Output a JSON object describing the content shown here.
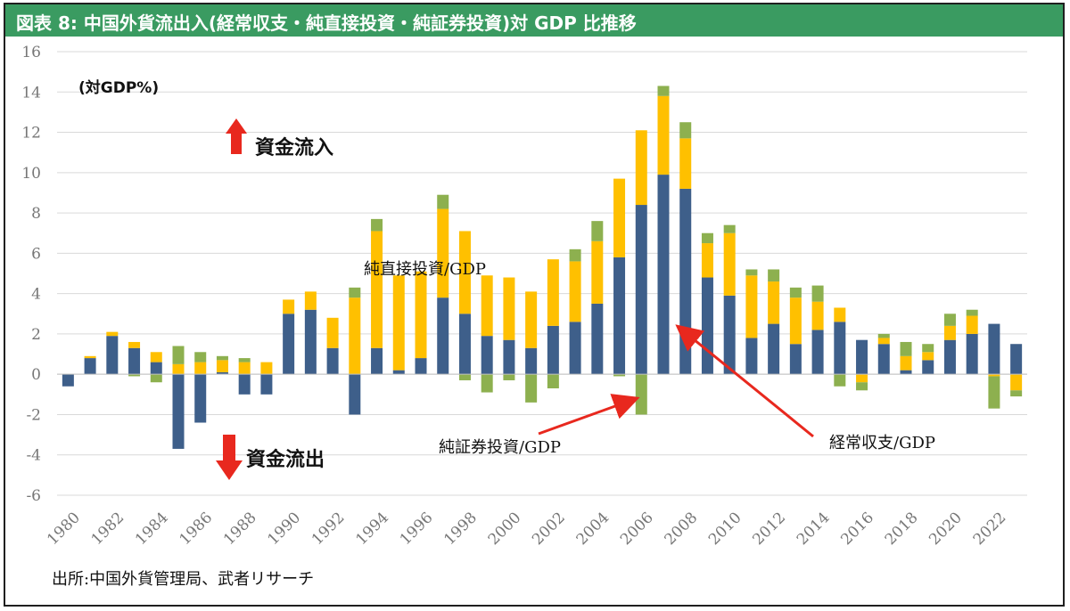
{
  "title": "図表 8: 中国外貨流出入(経常収支・純直接投資・純証券投資)対 GDP 比推移",
  "source": "出所:中国外貨管理局、武者リサーチ",
  "colors": {
    "current_account": "#3e5f8a",
    "fdi": "#ffc000",
    "portfolio": "#8db04f",
    "arrow": "#e8281e",
    "title_bg": "#3a9b61"
  },
  "chart_data": {
    "type": "bar",
    "stacked": true,
    "ylabel": "(対GDP%)",
    "ylim": [
      -6,
      16
    ],
    "yticks": [
      16,
      14,
      12,
      10,
      8,
      6,
      4,
      2,
      0,
      -2,
      -4,
      -6
    ],
    "grid": true,
    "x_tick_labels": [
      "1980",
      "1982",
      "1984",
      "1986",
      "1988",
      "1990",
      "1992",
      "1994",
      "1996",
      "1998",
      "2000",
      "2002",
      "2004",
      "2006",
      "2008",
      "2010",
      "2012",
      "2014",
      "2016",
      "2018",
      "2020",
      "2022"
    ],
    "categories": [
      "1980",
      "1981",
      "1982",
      "1983",
      "1984",
      "1985",
      "1986",
      "1987",
      "1988",
      "1989",
      "1990",
      "1991",
      "1992",
      "1993",
      "1994",
      "1995",
      "1996",
      "1997",
      "1998",
      "1999",
      "2000",
      "2001",
      "2002",
      "2003",
      "2004",
      "2005",
      "2006",
      "2007",
      "2008",
      "2009",
      "2010",
      "2011",
      "2012",
      "2013",
      "2014",
      "2015",
      "2016",
      "2017",
      "2018",
      "2019",
      "2020",
      "2021",
      "2022",
      "2023"
    ],
    "series": [
      {
        "key": "current_account",
        "values": [
          -0.6,
          0.8,
          1.9,
          1.3,
          0.6,
          -3.7,
          -2.4,
          0.1,
          -1.0,
          -1.0,
          3.0,
          3.2,
          1.3,
          -2.0,
          1.3,
          0.2,
          0.8,
          3.8,
          3.0,
          1.9,
          1.7,
          1.3,
          2.4,
          2.6,
          3.5,
          5.8,
          8.4,
          9.9,
          9.2,
          4.8,
          3.9,
          1.8,
          2.5,
          1.5,
          2.2,
          2.6,
          1.7,
          1.5,
          0.2,
          0.7,
          1.7,
          2.0,
          2.5,
          1.5
        ]
      },
      {
        "key": "fdi",
        "values": [
          0.0,
          0.1,
          0.2,
          0.3,
          0.5,
          0.5,
          0.6,
          0.6,
          0.6,
          0.6,
          0.7,
          0.9,
          1.5,
          3.8,
          5.8,
          4.7,
          4.3,
          4.4,
          4.1,
          3.0,
          3.1,
          2.8,
          3.3,
          3.0,
          3.1,
          3.9,
          3.7,
          3.9,
          2.5,
          1.7,
          3.1,
          3.1,
          2.1,
          2.3,
          1.4,
          0.7,
          -0.4,
          0.3,
          0.7,
          0.4,
          0.7,
          0.9,
          -0.1,
          -0.8
        ]
      },
      {
        "key": "portfolio",
        "values": [
          0.0,
          0.0,
          0.0,
          -0.1,
          -0.4,
          0.9,
          0.5,
          0.2,
          0.2,
          0.0,
          0.0,
          0.0,
          0.0,
          0.5,
          0.6,
          0.0,
          0.0,
          0.7,
          -0.3,
          -0.9,
          -0.3,
          -1.4,
          -0.7,
          0.6,
          1.0,
          -0.1,
          -2.0,
          0.5,
          0.8,
          0.5,
          0.4,
          0.3,
          0.6,
          0.5,
          0.8,
          -0.6,
          -0.4,
          0.2,
          0.7,
          0.4,
          0.6,
          0.3,
          -1.6,
          -0.3
        ]
      }
    ],
    "annotations": {
      "inflow": "資金流入",
      "outflow": "資金流出",
      "fdi_label": "純直接投資/GDP",
      "portfolio_label": "純証券投資/GDP",
      "current_label": "経常収支/GDP"
    }
  }
}
